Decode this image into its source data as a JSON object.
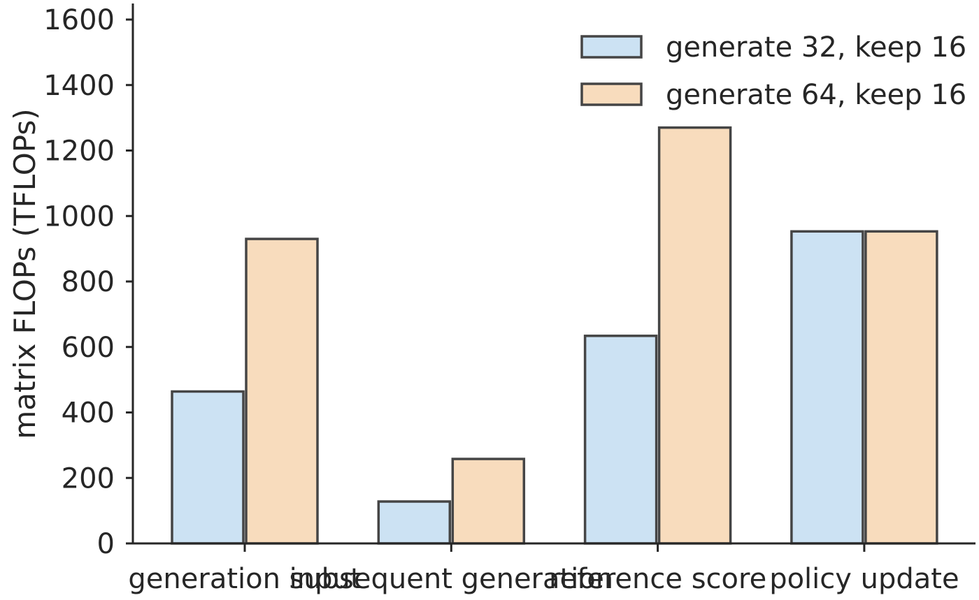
{
  "chart_data": {
    "type": "bar",
    "categories": [
      "generation input",
      "subsequent generation",
      "reference score",
      "policy update"
    ],
    "series": [
      {
        "name": "generate 32, keep 16",
        "values": [
          464,
          128,
          634,
          953
        ],
        "color": "#cce2f3"
      },
      {
        "name": "generate 64, keep 16",
        "values": [
          930,
          258,
          1270,
          953
        ],
        "color": "#f8dcbd"
      }
    ],
    "xlabel": "",
    "ylabel": "matrix FLOPs (TFLOPs)",
    "ylim": [
      0,
      1600
    ],
    "yticks": [
      0,
      200,
      400,
      600,
      800,
      1000,
      1200,
      1400,
      1600
    ],
    "grid": false,
    "legend_position": "top-right",
    "edge_color": "#454545"
  }
}
